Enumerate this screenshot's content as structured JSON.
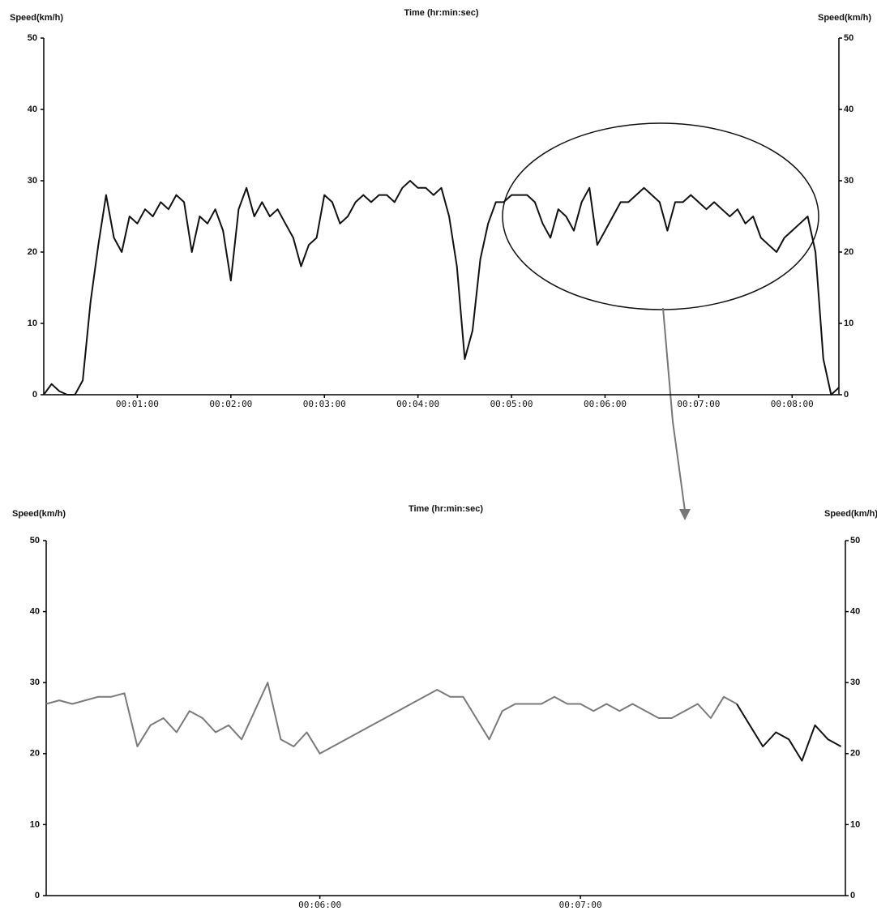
{
  "chart_data": [
    {
      "type": "line",
      "x_label": "Time (hr:min:sec)",
      "y_label": "Speed(km/h)",
      "y2_label": "Speed(km/h)",
      "xlim": [
        0,
        510
      ],
      "ylim": [
        0,
        50
      ],
      "y2lim": [
        0,
        50
      ],
      "yticks": [
        0,
        10,
        20,
        30,
        40,
        50
      ],
      "y2ticks": [
        0,
        10,
        20,
        30,
        40,
        50
      ],
      "xticks": [
        {
          "value": 60,
          "label": "00:01:00"
        },
        {
          "value": 120,
          "label": "00:02:00"
        },
        {
          "value": 180,
          "label": "00:03:00"
        },
        {
          "value": 240,
          "label": "00:04:00"
        },
        {
          "value": 300,
          "label": "00:05:00"
        },
        {
          "value": 360,
          "label": "00:06:00"
        },
        {
          "value": 420,
          "label": "00:07:00"
        },
        {
          "value": 480,
          "label": "00:08:00"
        }
      ],
      "x": [
        0,
        5,
        10,
        15,
        20,
        25,
        30,
        35,
        40,
        45,
        50,
        55,
        60,
        65,
        70,
        75,
        80,
        85,
        90,
        95,
        100,
        105,
        110,
        115,
        120,
        125,
        130,
        135,
        140,
        145,
        150,
        155,
        160,
        165,
        170,
        175,
        180,
        185,
        190,
        195,
        200,
        205,
        210,
        215,
        220,
        225,
        230,
        235,
        240,
        245,
        250,
        255,
        260,
        265,
        270,
        275,
        280,
        285,
        290,
        295,
        300,
        305,
        310,
        315,
        320,
        325,
        330,
        335,
        340,
        345,
        350,
        355,
        360,
        365,
        370,
        375,
        380,
        385,
        390,
        395,
        400,
        405,
        410,
        415,
        420,
        425,
        430,
        435,
        440,
        445,
        450,
        455,
        460,
        465,
        470,
        475,
        480,
        485,
        490,
        495,
        500,
        505,
        510
      ],
      "color": "#111111",
      "values": [
        0,
        1.5,
        0.5,
        0,
        0,
        2,
        13,
        21,
        28,
        22,
        20,
        25,
        24,
        26,
        25,
        27,
        26,
        28,
        27,
        20,
        25,
        24,
        26,
        23,
        16,
        26,
        29,
        25,
        27,
        25,
        26,
        24,
        22,
        18,
        21,
        22,
        28,
        27,
        24,
        25,
        27,
        28,
        27,
        28,
        28,
        27,
        29,
        30,
        29,
        29,
        28,
        29,
        25,
        18,
        5,
        9,
        19,
        24,
        27,
        27,
        28,
        28,
        28,
        27,
        24,
        22,
        26,
        25,
        23,
        27,
        29,
        21,
        23,
        25,
        27,
        27,
        28,
        29,
        28,
        27,
        23,
        27,
        27,
        28,
        27,
        26,
        27,
        26,
        25,
        26,
        24,
        25,
        22,
        21,
        20,
        22,
        23,
        24,
        25,
        20,
        5,
        0,
        1
      ]
    },
    {
      "type": "line",
      "x_label": "Time (hr:min:sec)",
      "y_label": "Speed(km/h)",
      "y2_label": "Speed(km/h)",
      "xlim": [
        297,
        481
      ],
      "ylim": [
        0,
        50
      ],
      "y2lim": [
        0,
        50
      ],
      "yticks": [
        0,
        10,
        20,
        30,
        40,
        50
      ],
      "y2ticks": [
        0,
        10,
        20,
        30,
        40,
        50
      ],
      "xticks": [
        {
          "value": 360,
          "label": "00:06:00"
        },
        {
          "value": 420,
          "label": "00:07:00"
        }
      ],
      "x": [
        297,
        300,
        303,
        306,
        309,
        312,
        315,
        318,
        321,
        324,
        327,
        330,
        333,
        336,
        339,
        342,
        345,
        348,
        351,
        354,
        357,
        360,
        363,
        366,
        369,
        372,
        375,
        378,
        381,
        384,
        387,
        390,
        393,
        396,
        399,
        402,
        405,
        408,
        411,
        414,
        417,
        420,
        423,
        426,
        429,
        432,
        435,
        438,
        441,
        444,
        447,
        450,
        453,
        456,
        459,
        462,
        465,
        468,
        471,
        474,
        477,
        480
      ],
      "series": [
        {
          "color": "#7a7a7a",
          "values": [
            27,
            27.5,
            27,
            27.5,
            28,
            28,
            28.5,
            21,
            24,
            25,
            23,
            26,
            25,
            23,
            24,
            22,
            26,
            30,
            22,
            21,
            23,
            20,
            21,
            22,
            23,
            24,
            25,
            26,
            27,
            28,
            29,
            28,
            28,
            25,
            22,
            26,
            27,
            27,
            27,
            28,
            27,
            27,
            26,
            27,
            26,
            27,
            26,
            25,
            25,
            26,
            27,
            25,
            28,
            27,
            null,
            null,
            null,
            null,
            null,
            null,
            null,
            null
          ]
        },
        {
          "color": "#111111",
          "values": [
            null,
            null,
            null,
            null,
            null,
            null,
            null,
            null,
            null,
            null,
            null,
            null,
            null,
            null,
            null,
            null,
            null,
            null,
            null,
            null,
            null,
            null,
            null,
            null,
            null,
            null,
            null,
            null,
            null,
            null,
            null,
            null,
            null,
            null,
            null,
            null,
            null,
            null,
            null,
            null,
            null,
            null,
            null,
            null,
            null,
            null,
            null,
            null,
            null,
            null,
            null,
            null,
            null,
            27,
            24,
            21,
            23,
            22,
            19,
            24,
            22,
            21
          ]
        }
      ]
    }
  ]
}
